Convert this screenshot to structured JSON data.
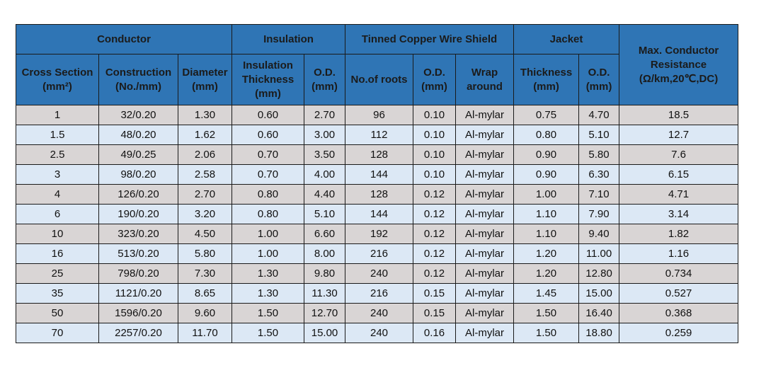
{
  "table": {
    "group_headers": [
      "Conductor",
      "Insulation",
      "Tinned Copper Wire Shield",
      "Jacket",
      "Max. Conductor Resistance (Ω/km,20℃,DC)"
    ],
    "column_headers": [
      "Cross Section (mm²)",
      "Construction (No./mm)",
      "Diameter (mm)",
      "Insulation Thickness (mm)",
      "O.D. (mm)",
      "No.of roots",
      "O.D. (mm)",
      "Wrap around",
      "Thickness (mm)",
      "O.D. (mm)"
    ],
    "rows": [
      [
        "1",
        "32/0.20",
        "1.30",
        "0.60",
        "2.70",
        "96",
        "0.10",
        "Al-mylar",
        "0.75",
        "4.70",
        "18.5"
      ],
      [
        "1.5",
        "48/0.20",
        "1.62",
        "0.60",
        "3.00",
        "112",
        "0.10",
        "Al-mylar",
        "0.80",
        "5.10",
        "12.7"
      ],
      [
        "2.5",
        "49/0.25",
        "2.06",
        "0.70",
        "3.50",
        "128",
        "0.10",
        "Al-mylar",
        "0.90",
        "5.80",
        "7.6"
      ],
      [
        "3",
        "98/0.20",
        "2.58",
        "0.70",
        "4.00",
        "144",
        "0.10",
        "Al-mylar",
        "0.90",
        "6.30",
        "6.15"
      ],
      [
        "4",
        "126/0.20",
        "2.70",
        "0.80",
        "4.40",
        "128",
        "0.12",
        "Al-mylar",
        "1.00",
        "7.10",
        "4.71"
      ],
      [
        "6",
        "190/0.20",
        "3.20",
        "0.80",
        "5.10",
        "144",
        "0.12",
        "Al-mylar",
        "1.10",
        "7.90",
        "3.14"
      ],
      [
        "10",
        "323/0.20",
        "4.50",
        "1.00",
        "6.60",
        "192",
        "0.12",
        "Al-mylar",
        "1.10",
        "9.40",
        "1.82"
      ],
      [
        "16",
        "513/0.20",
        "5.80",
        "1.00",
        "8.00",
        "216",
        "0.12",
        "Al-mylar",
        "1.20",
        "11.00",
        "1.16"
      ],
      [
        "25",
        "798/0.20",
        "7.30",
        "1.30",
        "9.80",
        "240",
        "0.12",
        "Al-mylar",
        "1.20",
        "12.80",
        "0.734"
      ],
      [
        "35",
        "1121/0.20",
        "8.65",
        "1.30",
        "11.30",
        "216",
        "0.15",
        "Al-mylar",
        "1.45",
        "15.00",
        "0.527"
      ],
      [
        "50",
        "1596/0.20",
        "9.60",
        "1.50",
        "12.70",
        "240",
        "0.15",
        "Al-mylar",
        "1.50",
        "16.40",
        "0.368"
      ],
      [
        "70",
        "2257/0.20",
        "11.70",
        "1.50",
        "15.00",
        "240",
        "0.16",
        "Al-mylar",
        "1.50",
        "18.80",
        "0.259"
      ]
    ]
  }
}
